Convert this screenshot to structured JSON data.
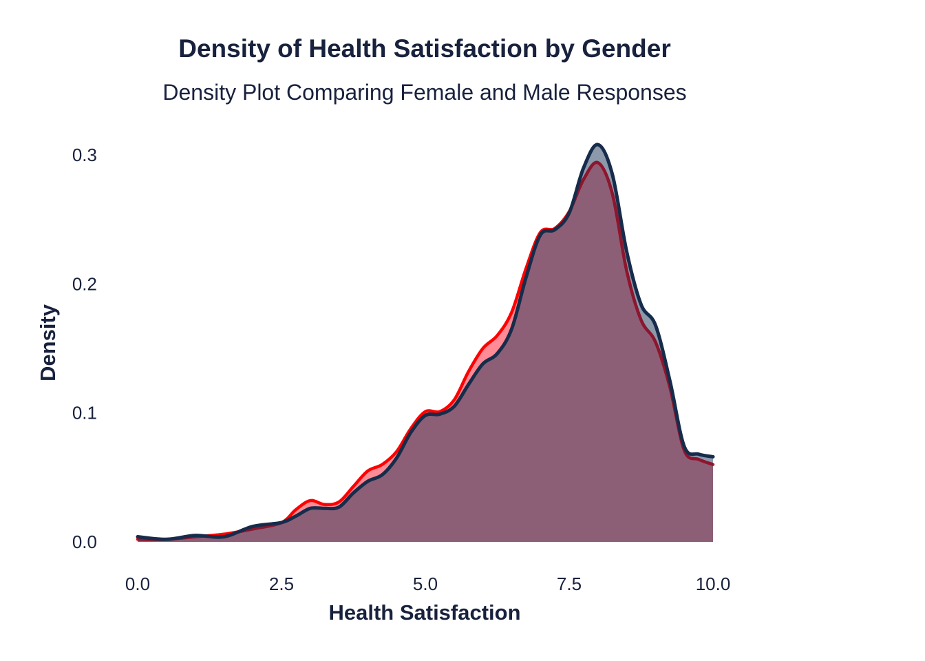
{
  "chart_data": {
    "type": "area",
    "title": "Density of Health Satisfaction by Gender",
    "subtitle": "Density Plot Comparing Female and Male Responses",
    "xlabel": "Health Satisfaction",
    "ylabel": "Density",
    "xlim": [
      0,
      10
    ],
    "ylim": [
      0,
      0.3
    ],
    "x_ticks": [
      "0.0",
      "2.5",
      "5.0",
      "7.5",
      "10.0"
    ],
    "y_ticks": [
      "0.0",
      "0.1",
      "0.2",
      "0.3"
    ],
    "grid": false,
    "legend": "none",
    "series": [
      {
        "fill_color": "#ff5a6a",
        "line_color": "#ff0000",
        "line_color_overlap": "#8a1730",
        "points": [
          [
            0,
            0.002
          ],
          [
            0.5,
            0.002
          ],
          [
            1.0,
            0.004
          ],
          [
            1.5,
            0.006
          ],
          [
            2.0,
            0.01
          ],
          [
            2.5,
            0.015
          ],
          [
            2.75,
            0.025
          ],
          [
            3.0,
            0.032
          ],
          [
            3.25,
            0.029
          ],
          [
            3.5,
            0.031
          ],
          [
            3.75,
            0.043
          ],
          [
            4.0,
            0.055
          ],
          [
            4.25,
            0.06
          ],
          [
            4.5,
            0.07
          ],
          [
            4.75,
            0.088
          ],
          [
            5.0,
            0.101
          ],
          [
            5.25,
            0.101
          ],
          [
            5.5,
            0.11
          ],
          [
            5.75,
            0.132
          ],
          [
            6.0,
            0.15
          ],
          [
            6.25,
            0.16
          ],
          [
            6.5,
            0.178
          ],
          [
            6.75,
            0.212
          ],
          [
            7.0,
            0.24
          ],
          [
            7.25,
            0.243
          ],
          [
            7.5,
            0.256
          ],
          [
            7.75,
            0.281
          ],
          [
            8.0,
            0.294
          ],
          [
            8.25,
            0.27
          ],
          [
            8.5,
            0.21
          ],
          [
            8.75,
            0.172
          ],
          [
            9.0,
            0.155
          ],
          [
            9.25,
            0.12
          ],
          [
            9.5,
            0.071
          ],
          [
            9.75,
            0.064
          ],
          [
            10.0,
            0.06
          ]
        ]
      },
      {
        "fill_color": "#1a3358",
        "line_color": "#172c4b",
        "points": [
          [
            0,
            0.004
          ],
          [
            0.5,
            0.002
          ],
          [
            1.0,
            0.005
          ],
          [
            1.5,
            0.004
          ],
          [
            2.0,
            0.012
          ],
          [
            2.5,
            0.015
          ],
          [
            2.75,
            0.02
          ],
          [
            3.0,
            0.026
          ],
          [
            3.25,
            0.026
          ],
          [
            3.5,
            0.027
          ],
          [
            3.75,
            0.038
          ],
          [
            4.0,
            0.047
          ],
          [
            4.25,
            0.052
          ],
          [
            4.5,
            0.065
          ],
          [
            4.75,
            0.085
          ],
          [
            5.0,
            0.098
          ],
          [
            5.25,
            0.099
          ],
          [
            5.5,
            0.105
          ],
          [
            5.75,
            0.122
          ],
          [
            6.0,
            0.138
          ],
          [
            6.25,
            0.146
          ],
          [
            6.5,
            0.165
          ],
          [
            6.75,
            0.205
          ],
          [
            7.0,
            0.238
          ],
          [
            7.25,
            0.242
          ],
          [
            7.5,
            0.255
          ],
          [
            7.75,
            0.29
          ],
          [
            8.0,
            0.308
          ],
          [
            8.25,
            0.285
          ],
          [
            8.5,
            0.225
          ],
          [
            8.75,
            0.184
          ],
          [
            9.0,
            0.168
          ],
          [
            9.25,
            0.125
          ],
          [
            9.5,
            0.074
          ],
          [
            9.75,
            0.068
          ],
          [
            10.0,
            0.066
          ]
        ]
      }
    ]
  }
}
